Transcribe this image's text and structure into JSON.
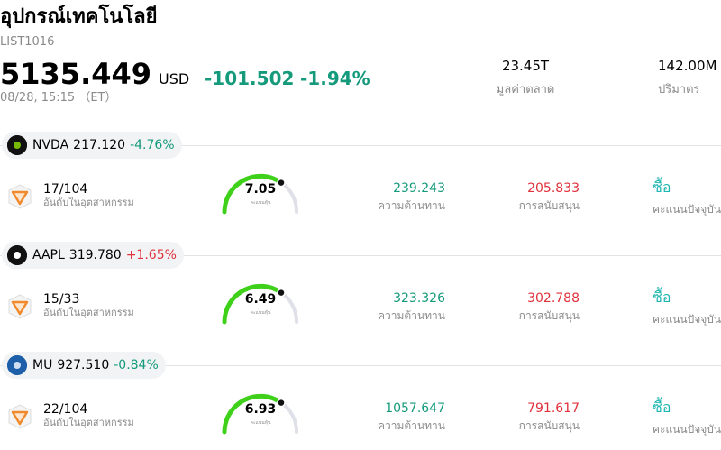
{
  "header": {
    "title": "อุปกรณ์เทคโนโลยี",
    "code": "LIST1016",
    "price": "5135.449",
    "currency": "USD",
    "change": "-101.502",
    "change_pct": "-1.94%",
    "time": "08/28, 15:15 （ET）",
    "stats": [
      {
        "value": "23.45T",
        "label": "มูลค่าตลาด"
      },
      {
        "value": "142.00M",
        "label": "ปริมาตร"
      }
    ]
  },
  "stocks": [
    {
      "ticker": "NVDA",
      "price": "217.120",
      "change_pct": "-4.76%",
      "rank": "17/104",
      "rank_label": "อันดับในอุตสาหกรรม",
      "score": "7.05",
      "score_label": "คะแนนหุ้น",
      "resistance": "239.243",
      "resistance_label": "ความต้านทาน",
      "support": "205.833",
      "support_label": "การสนับสนุน",
      "rating": "ซื้อ",
      "rating_label": "คะแนนปัจจุบัน"
    },
    {
      "ticker": "AAPL",
      "price": "319.780",
      "change_pct": "+1.65%",
      "rank": "15/33",
      "rank_label": "อันดับในอุตสาหกรรม",
      "score": "6.49",
      "score_label": "คะแนนหุ้น",
      "resistance": "323.326",
      "resistance_label": "ความต้านทาน",
      "support": "302.788",
      "support_label": "การสนับสนุน",
      "rating": "ซื้อ",
      "rating_label": "คะแนนปัจจุบัน"
    },
    {
      "ticker": "MU",
      "price": "927.510",
      "change_pct": "-0.84%",
      "rank": "22/104",
      "rank_label": "อันดับในอุตสาหกรรม",
      "score": "6.93",
      "score_label": "คะแนนหุ้น",
      "resistance": "1057.647",
      "resistance_label": "ความต้านทาน",
      "support": "791.617",
      "support_label": "การสนับสนุน",
      "rating": "ซื้อ",
      "rating_label": "คะแนนปัจจุบัน"
    }
  ]
}
